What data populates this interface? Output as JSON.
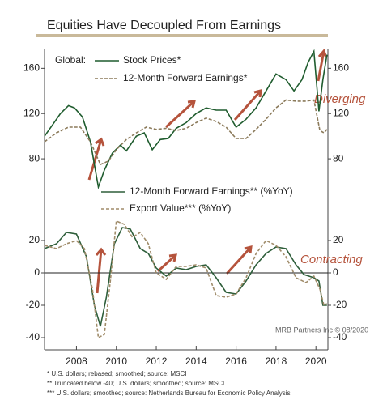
{
  "title": "Equities Have Decoupled From Earnings",
  "chart_data": [
    {
      "type": "line",
      "legend_title": "Global:",
      "xlim": [
        2006.4,
        2020.6
      ],
      "ylim": [
        50,
        176
      ],
      "yticks": [
        80,
        120,
        160
      ],
      "annotations": [
        "Diverging"
      ],
      "series": [
        {
          "name": "Stock Prices*",
          "color": "#1f5c2e",
          "dash": false,
          "x": [
            2006.4,
            2006.8,
            2007.2,
            2007.6,
            2007.9,
            2008.3,
            2008.7,
            2009.1,
            2009.4,
            2009.8,
            2010.2,
            2010.5,
            2011.0,
            2011.4,
            2011.8,
            2012.2,
            2012.6,
            2013.0,
            2013.5,
            2014.0,
            2014.5,
            2015.0,
            2015.5,
            2016.0,
            2016.5,
            2017.0,
            2017.5,
            2018.0,
            2018.5,
            2018.9,
            2019.3,
            2019.6,
            2019.9,
            2020.15,
            2020.35,
            2020.55
          ],
          "values": [
            100,
            110,
            120,
            127,
            125,
            117,
            95,
            55,
            70,
            85,
            92,
            87,
            100,
            103,
            88,
            97,
            98,
            107,
            112,
            120,
            125,
            123,
            123,
            108,
            115,
            125,
            140,
            155,
            150,
            140,
            150,
            165,
            175,
            122,
            150,
            172
          ]
        },
        {
          "name": "12-Month Forward Earnings*",
          "color": "#8b7a5a",
          "dash": true,
          "x": [
            2006.4,
            2007.0,
            2007.6,
            2008.2,
            2008.7,
            2009.2,
            2009.6,
            2010.0,
            2010.5,
            2011.0,
            2011.5,
            2012.0,
            2012.5,
            2013.0,
            2013.5,
            2014.0,
            2014.5,
            2015.0,
            2015.5,
            2016.0,
            2016.5,
            2017.0,
            2017.5,
            2018.0,
            2018.5,
            2019.0,
            2019.5,
            2019.9,
            2020.2,
            2020.4,
            2020.55
          ],
          "values": [
            95,
            103,
            108,
            108,
            95,
            75,
            78,
            88,
            97,
            103,
            108,
            106,
            107,
            105,
            107,
            112,
            116,
            113,
            108,
            98,
            98,
            106,
            115,
            125,
            132,
            131,
            131,
            132,
            105,
            103,
            106
          ]
        }
      ]
    },
    {
      "type": "line",
      "xlim": [
        2006.4,
        2020.6
      ],
      "ylim": [
        -46,
        36
      ],
      "yticks": [
        -40,
        -20,
        0,
        20
      ],
      "xticks": [
        2008,
        2010,
        2012,
        2014,
        2016,
        2018,
        2020
      ],
      "annotations": [
        "Contracting"
      ],
      "source": "MRB Partners Inc © 08/2020",
      "series": [
        {
          "name": "12-Month Forward Earnings** (%YoY)",
          "color": "#2e5e3a",
          "dash": false,
          "x": [
            2006.4,
            2007.0,
            2007.5,
            2008.0,
            2008.5,
            2008.9,
            2009.2,
            2009.5,
            2009.9,
            2010.3,
            2010.7,
            2011.2,
            2011.6,
            2012.0,
            2012.5,
            2013.0,
            2013.5,
            2014.0,
            2014.5,
            2015.0,
            2015.5,
            2016.0,
            2016.5,
            2017.0,
            2017.5,
            2018.0,
            2018.5,
            2019.0,
            2019.4,
            2019.9,
            2020.15,
            2020.35,
            2020.55
          ],
          "values": [
            15,
            18,
            25,
            24,
            10,
            -20,
            -33,
            -15,
            18,
            28,
            27,
            15,
            12,
            3,
            -2,
            3,
            2,
            4,
            5,
            -3,
            -12,
            -13,
            -5,
            5,
            12,
            16,
            15,
            5,
            -1,
            -3,
            -5,
            -20,
            -20
          ]
        },
        {
          "name": "Export Value*** (%YoY)",
          "color": "#a08c6a",
          "dash": true,
          "x": [
            2006.4,
            2007.0,
            2007.5,
            2008.0,
            2008.4,
            2008.8,
            2009.1,
            2009.4,
            2009.7,
            2010.0,
            2010.4,
            2010.8,
            2011.2,
            2011.6,
            2012.0,
            2012.5,
            2013.0,
            2013.5,
            2014.0,
            2014.5,
            2015.0,
            2015.5,
            2016.0,
            2016.5,
            2017.0,
            2017.5,
            2018.0,
            2018.5,
            2019.0,
            2019.5,
            2019.9,
            2020.2,
            2020.4,
            2020.55
          ],
          "values": [
            17,
            15,
            18,
            20,
            15,
            -10,
            -40,
            -38,
            -5,
            32,
            30,
            22,
            25,
            18,
            0,
            -4,
            4,
            4,
            5,
            3,
            -14,
            -15,
            -13,
            -3,
            12,
            20,
            17,
            10,
            -3,
            -6,
            -2,
            -10,
            -20,
            -19
          ]
        }
      ]
    }
  ],
  "footnotes": [
    "*    U.S. dollars; rebased; smoothed; source: MSCI",
    "**   Truncated below -40; U.S. dollars; smoothed; source: MSCI",
    "*** U.S. dollars; smoothed; source: Netherlands Bureau for Economic Policy Analysis"
  ]
}
